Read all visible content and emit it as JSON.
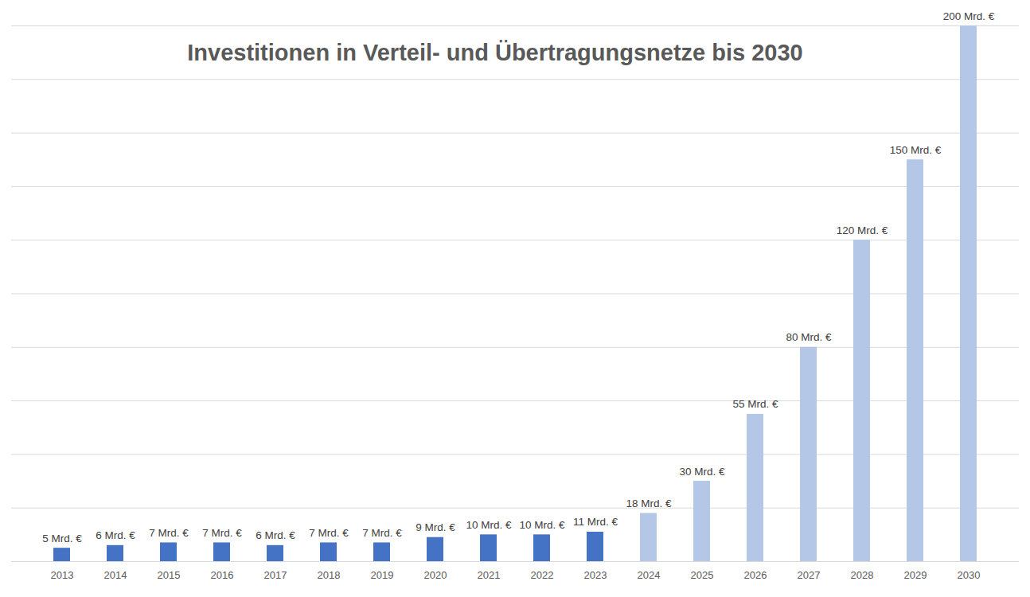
{
  "chart_data": {
    "type": "bar",
    "title": "Investitionen in Verteil- und Übertragungsnetze bis 2030",
    "categories": [
      "2013",
      "2014",
      "2015",
      "2016",
      "2017",
      "2018",
      "2019",
      "2020",
      "2021",
      "2022",
      "2023",
      "2024",
      "2025",
      "2026",
      "2027",
      "2028",
      "2029",
      "2030"
    ],
    "values": [
      5,
      6,
      7,
      7,
      6,
      7,
      7,
      9,
      10,
      10,
      11,
      18,
      30,
      55,
      80,
      120,
      150,
      200
    ],
    "value_labels": [
      "5 Mrd. €",
      "6 Mrd. €",
      "7 Mrd. €",
      "7 Mrd. €",
      "6 Mrd. €",
      "7 Mrd. €",
      "7 Mrd. €",
      "9 Mrd. €",
      "10 Mrd. €",
      "10 Mrd. €",
      "11 Mrd. €",
      "18 Mrd. €",
      "30 Mrd. €",
      "55 Mrd. €",
      "80 Mrd. €",
      "120 Mrd. €",
      "150 Mrd. €",
      "200 Mrd. €"
    ],
    "colors": [
      "#4472c4",
      "#4472c4",
      "#4472c4",
      "#4472c4",
      "#4472c4",
      "#4472c4",
      "#4472c4",
      "#4472c4",
      "#4472c4",
      "#4472c4",
      "#4472c4",
      "#b4c7e7",
      "#b4c7e7",
      "#b4c7e7",
      "#b4c7e7",
      "#b4c7e7",
      "#b4c7e7",
      "#b4c7e7"
    ],
    "ylim": [
      0,
      200
    ],
    "yticks": [
      0,
      20,
      40,
      60,
      80,
      100,
      120,
      140,
      160,
      180,
      200
    ],
    "grid": true,
    "data_labels": true,
    "tick_labels": "x"
  }
}
